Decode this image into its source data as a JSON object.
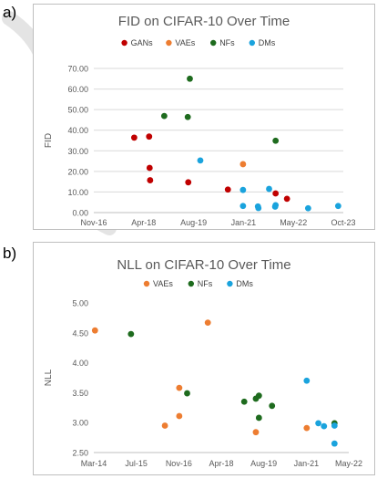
{
  "panels": {
    "a": "a)",
    "b": "b)"
  },
  "chart_data": [
    {
      "type": "scatter",
      "title": "FID on CIFAR-10 Over Time",
      "xlabel": "",
      "ylabel": "FID",
      "x_axis": {
        "format": "date",
        "min": "2016-11-01",
        "max": "2023-10-01",
        "tick_labels": [
          "Nov-16",
          "Apr-18",
          "Aug-19",
          "Jan-21",
          "May-22",
          "Oct-23"
        ]
      },
      "y_axis": {
        "min": 0,
        "max": 70,
        "step": 10,
        "tick_labels": [
          "0.00",
          "10.00",
          "20.00",
          "30.00",
          "40.00",
          "50.00",
          "60.00",
          "70.00"
        ]
      },
      "grid": "horizontal",
      "legend": "top",
      "series": [
        {
          "name": "GANs",
          "color": "#c00000",
          "points": [
            {
              "x": "2017-12-15",
              "y": 36.4
            },
            {
              "x": "2018-05-15",
              "y": 36.9
            },
            {
              "x": "2018-05-20",
              "y": 21.7
            },
            {
              "x": "2018-05-25",
              "y": 15.7
            },
            {
              "x": "2019-06-15",
              "y": 14.7
            },
            {
              "x": "2020-07-20",
              "y": 11.2
            },
            {
              "x": "2021-11-15",
              "y": 9.3
            },
            {
              "x": "2022-03-10",
              "y": 6.7
            }
          ]
        },
        {
          "name": "VAEs",
          "color": "#ed7d31",
          "points": [
            {
              "x": "2020-12-20",
              "y": 23.5
            }
          ]
        },
        {
          "name": "NFs",
          "color": "#1e6b1e",
          "points": [
            {
              "x": "2018-10-15",
              "y": 46.9
            },
            {
              "x": "2019-07-01",
              "y": 65.0
            },
            {
              "x": "2019-06-10",
              "y": 46.4
            },
            {
              "x": "2021-11-15",
              "y": 34.9
            }
          ]
        },
        {
          "name": "DMs",
          "color": "#1aa3dd",
          "points": [
            {
              "x": "2019-10-15",
              "y": 25.3
            },
            {
              "x": "2020-12-20",
              "y": 11.0
            },
            {
              "x": "2020-12-20",
              "y": 3.2
            },
            {
              "x": "2021-05-20",
              "y": 3.0
            },
            {
              "x": "2021-05-25",
              "y": 2.2
            },
            {
              "x": "2021-09-10",
              "y": 11.5
            },
            {
              "x": "2021-11-10",
              "y": 2.9
            },
            {
              "x": "2021-11-15",
              "y": 3.6
            },
            {
              "x": "2022-10-10",
              "y": 2.1
            },
            {
              "x": "2023-08-10",
              "y": 3.2
            }
          ]
        }
      ]
    },
    {
      "type": "scatter",
      "title": "NLL on CIFAR-10 Over Time",
      "xlabel": "",
      "ylabel": "NLL",
      "x_axis": {
        "format": "date",
        "min": "2014-03-01",
        "max": "2022-05-01",
        "tick_labels": [
          "Mar-14",
          "Jul-15",
          "Nov-16",
          "Apr-18",
          "Aug-19",
          "Jan-21",
          "May-22"
        ]
      },
      "y_axis": {
        "min": 2.5,
        "max": 5.0,
        "step": 0.5,
        "tick_labels": [
          "2.50",
          "3.00",
          "3.50",
          "4.00",
          "4.50",
          "5.00"
        ]
      },
      "grid": "none",
      "legend": "top",
      "series": [
        {
          "name": "VAEs",
          "color": "#ed7d31",
          "points": [
            {
              "x": "2014-03-15",
              "y": 4.54
            },
            {
              "x": "2016-06-10",
              "y": 2.95
            },
            {
              "x": "2016-11-25",
              "y": 3.58
            },
            {
              "x": "2016-11-25",
              "y": 3.11
            },
            {
              "x": "2017-10-25",
              "y": 4.67
            },
            {
              "x": "2019-05-10",
              "y": 2.84
            },
            {
              "x": "2020-12-25",
              "y": 2.91
            }
          ]
        },
        {
          "name": "NFs",
          "color": "#1e6b1e",
          "points": [
            {
              "x": "2015-05-10",
              "y": 4.48
            },
            {
              "x": "2017-02-25",
              "y": 3.49
            },
            {
              "x": "2018-12-25",
              "y": 3.35
            },
            {
              "x": "2019-05-10",
              "y": 3.4
            },
            {
              "x": "2019-06-15",
              "y": 3.45
            },
            {
              "x": "2019-06-15",
              "y": 3.08
            },
            {
              "x": "2019-11-15",
              "y": 3.28
            },
            {
              "x": "2021-11-15",
              "y": 2.99
            }
          ]
        },
        {
          "name": "DMs",
          "color": "#1aa3dd",
          "points": [
            {
              "x": "2020-12-25",
              "y": 3.7
            },
            {
              "x": "2021-05-10",
              "y": 2.99
            },
            {
              "x": "2021-07-15",
              "y": 2.94
            },
            {
              "x": "2021-11-15",
              "y": 2.95
            },
            {
              "x": "2021-11-15",
              "y": 2.65
            }
          ]
        }
      ]
    }
  ]
}
